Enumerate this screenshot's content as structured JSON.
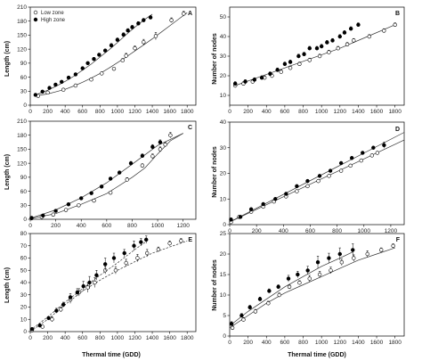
{
  "chart_data": [
    {
      "type": "scatter",
      "panel": "A",
      "xlabel": "",
      "ylabel": "Length (cm)",
      "xlim": [
        0,
        1900
      ],
      "ylim": [
        0,
        210
      ],
      "xticks": [
        "0",
        "200",
        "400",
        "600",
        "800",
        "1000",
        "1200",
        "1400",
        "1600",
        "1800"
      ],
      "yticks": [
        "0",
        "30",
        "60",
        "90",
        "120",
        "150",
        "180",
        "210"
      ],
      "legend": {
        "position": "top-left",
        "entries": [
          "Low zone",
          "High zone"
        ]
      },
      "series": [
        {
          "name": "Low zone",
          "marker": "open",
          "fit": "solid",
          "x": [
            90,
            200,
            380,
            520,
            700,
            820,
            960,
            1060,
            1100,
            1200,
            1300,
            1440,
            1620,
            1760
          ],
          "y": [
            20,
            27,
            33,
            42,
            55,
            68,
            78,
            96,
            106,
            122,
            135,
            148,
            182,
            196
          ],
          "err": [
            2,
            2,
            2,
            2,
            3,
            3,
            3,
            4,
            5,
            5,
            6,
            8,
            5,
            5
          ],
          "fit_x": [
            90,
            200,
            300,
            400,
            500,
            600,
            700,
            800,
            900,
            1000,
            1100,
            1200,
            1300,
            1400,
            1500,
            1600,
            1700,
            1800
          ],
          "fit_y": [
            21,
            24,
            29,
            34,
            41,
            49,
            58,
            68,
            79,
            91,
            103,
            116,
            129,
            142,
            156,
            170,
            184,
            198
          ]
        },
        {
          "name": "High zone",
          "marker": "filled",
          "fit": "solid",
          "x": [
            60,
            140,
            220,
            290,
            360,
            440,
            520,
            600,
            660,
            730,
            790,
            860,
            930,
            1000,
            1070,
            1120,
            1170,
            1240,
            1300,
            1380
          ],
          "y": [
            22,
            29,
            37,
            44,
            50,
            59,
            66,
            79,
            90,
            99,
            108,
            117,
            128,
            140,
            151,
            160,
            167,
            175,
            182,
            188
          ],
          "err": [
            1,
            1,
            2,
            2,
            2,
            2,
            2,
            3,
            3,
            3,
            3,
            3,
            4,
            4,
            4,
            4,
            4,
            4,
            4,
            4
          ],
          "fit_x": [
            60,
            200,
            300,
            400,
            500,
            600,
            700,
            800,
            900,
            1000,
            1100,
            1200,
            1300,
            1400
          ],
          "fit_y": [
            22,
            32,
            41,
            51,
            62,
            75,
            88,
            103,
            118,
            134,
            151,
            167,
            182,
            195
          ]
        }
      ]
    },
    {
      "type": "scatter",
      "panel": "B",
      "xlabel": "",
      "ylabel": "Number of nodes",
      "xlim": [
        0,
        1900
      ],
      "ylim": [
        5,
        55
      ],
      "xticks": [
        "0",
        "200",
        "400",
        "600",
        "800",
        "1000",
        "1200",
        "1400",
        "1600",
        "1800"
      ],
      "yticks": [
        "10",
        "20",
        "30",
        "40",
        "50"
      ],
      "series": [
        {
          "name": "Low zone",
          "marker": "open",
          "fit": "solid",
          "x": [
            60,
            150,
            250,
            380,
            460,
            560,
            660,
            760,
            870,
            980,
            1080,
            1180,
            1280,
            1350,
            1520,
            1680,
            1800
          ],
          "y": [
            15,
            16,
            17,
            19,
            20,
            22,
            24,
            26,
            28,
            30,
            32,
            34,
            36,
            38,
            40,
            43,
            46
          ],
          "err": [
            1,
            1,
            1,
            1,
            1,
            1,
            1,
            1,
            1,
            1,
            1,
            1,
            1,
            1,
            1,
            1,
            1
          ],
          "fit_x": [
            60,
            300,
            600,
            900,
            1200,
            1500,
            1800
          ],
          "fit_y": [
            15,
            19,
            24,
            29,
            34,
            40,
            46
          ]
        },
        {
          "name": "High zone",
          "marker": "filled",
          "fit": "none",
          "x": [
            60,
            170,
            270,
            350,
            440,
            520,
            600,
            660,
            750,
            810,
            870,
            950,
            1000,
            1060,
            1120,
            1200,
            1250,
            1320,
            1400
          ],
          "y": [
            16,
            17,
            18,
            19,
            21,
            23,
            26,
            27,
            30,
            31,
            34,
            34,
            35,
            37,
            38,
            40,
            42,
            44,
            46
          ],
          "err": [
            1,
            1,
            1,
            1,
            1,
            1,
            1,
            1,
            1,
            1,
            1,
            1,
            1,
            1,
            1,
            1,
            1,
            1,
            1
          ]
        }
      ]
    },
    {
      "type": "scatter",
      "panel": "C",
      "xlabel": "",
      "ylabel": "Length (cm)",
      "xlim": [
        0,
        1300
      ],
      "ylim": [
        0,
        210
      ],
      "xticks": [
        "0",
        "200",
        "400",
        "600",
        "800",
        "1000",
        "1200"
      ],
      "yticks": [
        "0",
        "30",
        "60",
        "90",
        "120",
        "150",
        "180",
        "210"
      ],
      "series": [
        {
          "name": "Low zone",
          "marker": "open",
          "fit": "solid",
          "x": [
            10,
            90,
            180,
            280,
            380,
            500,
            630,
            760,
            880,
            960,
            1020,
            1060,
            1100
          ],
          "y": [
            2,
            5,
            10,
            20,
            30,
            40,
            57,
            85,
            115,
            135,
            150,
            160,
            180
          ],
          "err": [
            1,
            1,
            1,
            2,
            2,
            3,
            3,
            4,
            4,
            5,
            5,
            5,
            6
          ],
          "fit_x": [
            10,
            200,
            400,
            600,
            800,
            900,
            1000,
            1100,
            1200
          ],
          "fit_y": [
            2,
            12,
            32,
            55,
            90,
            110,
            140,
            168,
            184
          ]
        },
        {
          "name": "High zone",
          "marker": "filled",
          "fit": "solid",
          "x": [
            10,
            100,
            200,
            300,
            400,
            480,
            560,
            630,
            700,
            790,
            880,
            960,
            1020
          ],
          "y": [
            3,
            8,
            18,
            32,
            45,
            56,
            70,
            87,
            100,
            120,
            136,
            155,
            165
          ],
          "err": [
            1,
            1,
            1,
            2,
            2,
            2,
            3,
            3,
            3,
            4,
            4,
            5,
            5
          ],
          "fit_x": [
            10,
            200,
            400,
            600,
            800,
            1000,
            1200
          ],
          "fit_y": [
            3,
            20,
            46,
            78,
            118,
            158,
            184
          ]
        }
      ]
    },
    {
      "type": "scatter",
      "panel": "D",
      "xlabel": "",
      "ylabel": "Number of nodes",
      "xlim": [
        0,
        1300
      ],
      "ylim": [
        0,
        40
      ],
      "xticks": [
        "0",
        "200",
        "400",
        "600",
        "800",
        "1000",
        "1200"
      ],
      "yticks": [
        "0",
        "10",
        "20",
        "30",
        "40"
      ],
      "series": [
        {
          "name": "Low zone",
          "marker": "open",
          "fit": "solid",
          "x": [
            10,
            70,
            160,
            250,
            330,
            420,
            500,
            580,
            660,
            740,
            830,
            900,
            980,
            1060,
            1100
          ],
          "y": [
            1,
            3,
            5,
            7,
            9,
            11,
            13,
            15,
            17,
            19,
            21,
            23,
            25,
            27,
            28
          ],
          "err": [
            0.5,
            0.5,
            0.5,
            0.5,
            0.5,
            0.5,
            0.5,
            0.5,
            0.5,
            0.5,
            0.5,
            0.5,
            0.5,
            0.5,
            0.5
          ],
          "fit_x": [
            0,
            1300
          ],
          "fit_y": [
            1,
            33
          ]
        },
        {
          "name": "High zone",
          "marker": "filled",
          "fit": "solid",
          "x": [
            10,
            80,
            160,
            250,
            340,
            420,
            500,
            580,
            670,
            750,
            830,
            910,
            990,
            1070,
            1150
          ],
          "y": [
            2,
            3,
            6,
            8,
            10,
            12,
            15,
            17,
            19,
            21,
            24,
            26,
            28,
            30,
            31
          ],
          "err": [
            0.5,
            0.5,
            0.5,
            0.5,
            0.5,
            0.5,
            0.5,
            0.5,
            0.5,
            0.5,
            0.5,
            0.5,
            0.5,
            0.5,
            1.2
          ],
          "fit_x": [
            0,
            1300
          ],
          "fit_y": [
            1,
            36
          ]
        }
      ]
    },
    {
      "type": "scatter",
      "panel": "E",
      "xlabel": "Thermal time (GDD)",
      "ylabel": "Length (cm)",
      "xlim": [
        0,
        1900
      ],
      "ylim": [
        0,
        80
      ],
      "xticks": [
        "0",
        "200",
        "400",
        "600",
        "800",
        "1000",
        "1200",
        "1400",
        "1600",
        "1800"
      ],
      "yticks": [
        "0",
        "10",
        "20",
        "30",
        "40",
        "50",
        "60",
        "70",
        "80"
      ],
      "series": [
        {
          "name": "Low zone",
          "marker": "open",
          "fit": "dashed",
          "x": [
            20,
            140,
            250,
            350,
            460,
            560,
            660,
            740,
            860,
            980,
            1100,
            1230,
            1340,
            1470,
            1600,
            1730
          ],
          "y": [
            1,
            4,
            10,
            18,
            26,
            32,
            36,
            40,
            50,
            50,
            56,
            60,
            64,
            67,
            72,
            74
          ],
          "err": [
            0.5,
            1,
            2,
            2,
            3,
            3,
            4,
            4,
            3,
            3,
            3,
            3,
            3,
            2,
            2,
            2
          ],
          "fit_x": [
            0,
            200,
            400,
            600,
            800,
            1000,
            1200,
            1400,
            1600,
            1800
          ],
          "fit_y": [
            0,
            10,
            22,
            33,
            42,
            50,
            57,
            64,
            69,
            74
          ]
        },
        {
          "name": "High zone",
          "marker": "filled",
          "fit": "dashed",
          "x": [
            20,
            110,
            210,
            300,
            380,
            460,
            540,
            610,
            680,
            760,
            860,
            960,
            1080,
            1190,
            1270,
            1330
          ],
          "y": [
            2,
            5,
            11,
            17,
            22,
            28,
            32,
            37,
            40,
            46,
            55,
            60,
            64,
            70,
            73,
            75
          ],
          "err": [
            0.5,
            1,
            1,
            2,
            2,
            3,
            3,
            4,
            5,
            4,
            5,
            4,
            3,
            4,
            3,
            3
          ],
          "fit_x": [
            0,
            200,
            400,
            600,
            800,
            1000,
            1200,
            1340
          ],
          "fit_y": [
            1,
            12,
            24,
            35,
            46,
            56,
            67,
            74
          ]
        }
      ]
    },
    {
      "type": "scatter",
      "panel": "F",
      "xlabel": "Thermal time (GDD)",
      "ylabel": "Number of nodes",
      "xlim": [
        0,
        1900
      ],
      "ylim": [
        0,
        25
      ],
      "xticks": [
        "0",
        "200",
        "400",
        "600",
        "800",
        "1000",
        "1200",
        "1400",
        "1600",
        "1800"
      ],
      "yticks": [
        "0",
        "5",
        "10",
        "15",
        "20",
        "25"
      ],
      "series": [
        {
          "name": "Low zone",
          "marker": "open",
          "fit": "solid",
          "x": [
            30,
            150,
            280,
            420,
            540,
            650,
            760,
            870,
            980,
            1100,
            1220,
            1350,
            1500,
            1650,
            1780
          ],
          "y": [
            2,
            4,
            6,
            8,
            10,
            12,
            13,
            14,
            15,
            16,
            18,
            19,
            20,
            21,
            22
          ],
          "err": [
            0.5,
            0.5,
            0.5,
            0.5,
            0.5,
            0.5,
            0.5,
            0.8,
            0.8,
            0.8,
            0.8,
            0.8,
            0.8,
            0.5,
            0.5
          ],
          "fit_x": [
            0,
            200,
            400,
            600,
            800,
            1000,
            1200,
            1400,
            1600,
            1800
          ],
          "fit_y": [
            2,
            5,
            8,
            10.5,
            12.5,
            14.5,
            16.5,
            18.5,
            20,
            21.5
          ]
        },
        {
          "name": "High zone",
          "marker": "filled",
          "fit": "solid",
          "x": [
            20,
            130,
            220,
            330,
            430,
            530,
            640,
            740,
            850,
            960,
            1080,
            1200,
            1340
          ],
          "y": [
            3,
            5,
            7,
            9,
            11,
            12,
            14,
            15,
            16,
            18,
            19,
            20,
            21
          ],
          "err": [
            0.5,
            0.5,
            0.5,
            0.5,
            0.5,
            0.5,
            0.8,
            0.8,
            1,
            1.5,
            1.2,
            1.5,
            1.5
          ],
          "fit_x": [
            0,
            200,
            400,
            600,
            800,
            1000,
            1200,
            1340
          ],
          "fit_y": [
            2.5,
            6,
            9,
            12,
            14.5,
            17,
            19,
            20.5
          ]
        }
      ]
    }
  ]
}
